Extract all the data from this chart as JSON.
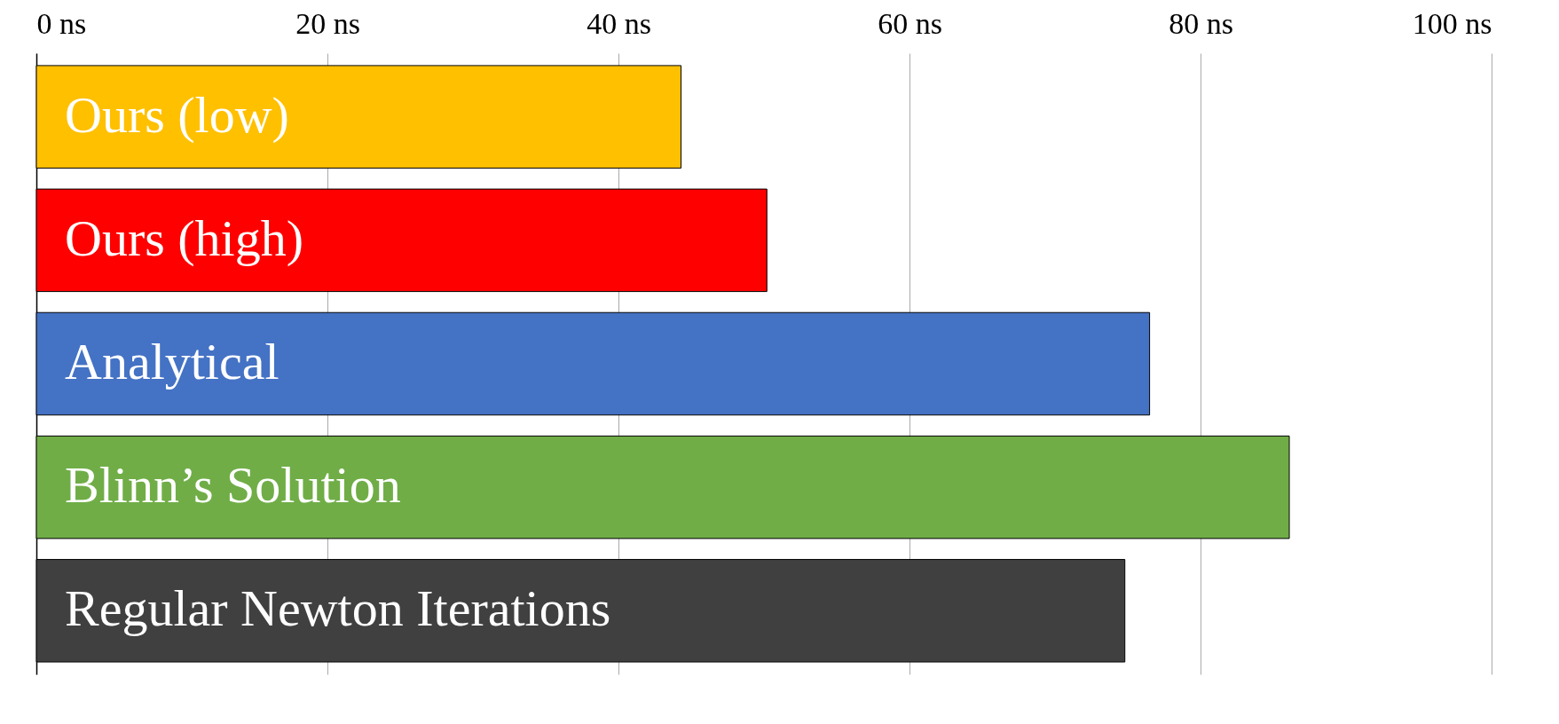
{
  "chart_data": {
    "type": "bar",
    "orientation": "horizontal",
    "categories": [
      "Ours (low)",
      "Ours (high)",
      "Analytical",
      "Blinn’s Solution",
      "Regular Newton Iterations"
    ],
    "values": [
      44.3,
      50.2,
      76.5,
      86.1,
      74.8
    ],
    "colors": [
      "#ffc000",
      "#ff0000",
      "#4472c4",
      "#70ad47",
      "#404040"
    ],
    "xlim": [
      0,
      100
    ],
    "xticks": [
      {
        "value": 0,
        "label": "0 ns"
      },
      {
        "value": 20,
        "label": "20 ns"
      },
      {
        "value": 40,
        "label": "40 ns"
      },
      {
        "value": 60,
        "label": "60 ns"
      },
      {
        "value": 80,
        "label": "80 ns"
      },
      {
        "value": 100,
        "label": "100 ns"
      }
    ],
    "grid": "x"
  }
}
